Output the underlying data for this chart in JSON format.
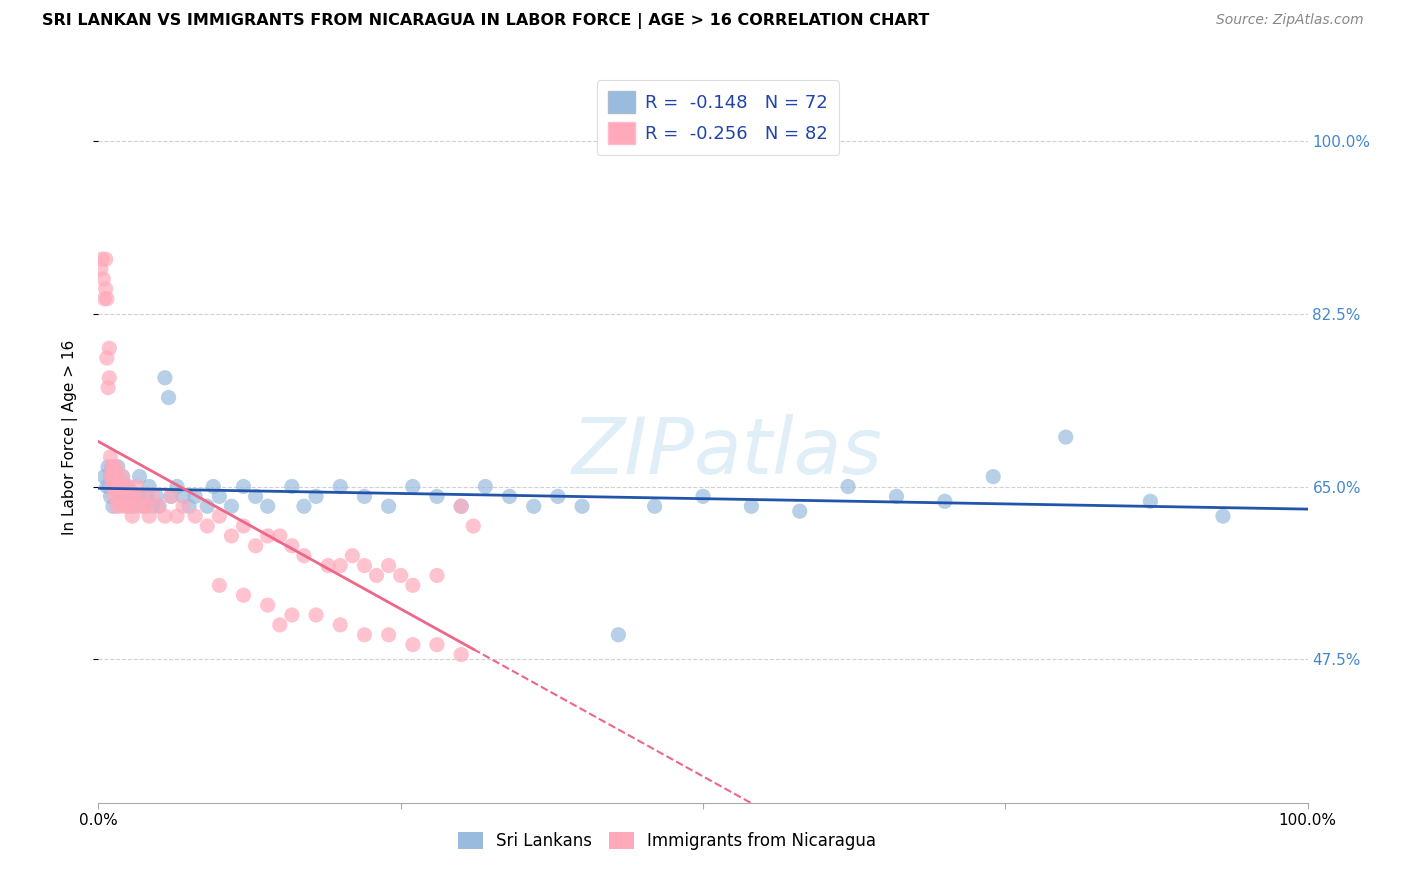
{
  "title": "SRI LANKAN VS IMMIGRANTS FROM NICARAGUA IN LABOR FORCE | AGE > 16 CORRELATION CHART",
  "source": "Source: ZipAtlas.com",
  "ylabel": "In Labor Force | Age > 16",
  "xlim": [
    0.0,
    1.0
  ],
  "ylim": [
    0.33,
    1.07
  ],
  "ytick_vals": [
    0.475,
    0.65,
    0.825,
    1.0
  ],
  "ytick_labels": [
    "47.5%",
    "65.0%",
    "82.5%",
    "100.0%"
  ],
  "xtick_vals": [
    0.0,
    0.25,
    0.5,
    0.75,
    1.0
  ],
  "xtick_labels": [
    "0.0%",
    "",
    "",
    "",
    "100.0%"
  ],
  "sri_lankan_R": -0.148,
  "sri_lankan_N": 72,
  "nicaragua_R": -0.256,
  "nicaragua_N": 82,
  "blue_color": "#99BBDD",
  "pink_color": "#FFAABB",
  "blue_line_color": "#2255AA",
  "pink_line_color": "#EE6688",
  "watermark": "ZIPatlas",
  "background_color": "#FFFFFF",
  "blue_x": [
    0.005,
    0.007,
    0.008,
    0.009,
    0.01,
    0.01,
    0.011,
    0.012,
    0.012,
    0.013,
    0.015,
    0.016,
    0.017,
    0.018,
    0.019,
    0.02,
    0.021,
    0.022,
    0.024,
    0.025,
    0.026,
    0.028,
    0.03,
    0.032,
    0.034,
    0.036,
    0.038,
    0.04,
    0.042,
    0.045,
    0.048,
    0.05,
    0.055,
    0.058,
    0.06,
    0.065,
    0.07,
    0.075,
    0.08,
    0.09,
    0.095,
    0.1,
    0.11,
    0.12,
    0.13,
    0.14,
    0.16,
    0.17,
    0.18,
    0.2,
    0.22,
    0.24,
    0.26,
    0.28,
    0.3,
    0.32,
    0.34,
    0.36,
    0.38,
    0.4,
    0.43,
    0.46,
    0.5,
    0.54,
    0.58,
    0.62,
    0.66,
    0.7,
    0.74,
    0.8,
    0.87,
    0.93
  ],
  "blue_y": [
    0.66,
    0.65,
    0.67,
    0.65,
    0.66,
    0.64,
    0.67,
    0.65,
    0.63,
    0.66,
    0.65,
    0.67,
    0.65,
    0.65,
    0.64,
    0.66,
    0.65,
    0.64,
    0.65,
    0.64,
    0.63,
    0.64,
    0.63,
    0.64,
    0.66,
    0.64,
    0.63,
    0.64,
    0.65,
    0.63,
    0.64,
    0.63,
    0.76,
    0.74,
    0.64,
    0.65,
    0.64,
    0.63,
    0.64,
    0.63,
    0.65,
    0.64,
    0.63,
    0.65,
    0.64,
    0.63,
    0.65,
    0.63,
    0.64,
    0.65,
    0.64,
    0.63,
    0.65,
    0.64,
    0.63,
    0.65,
    0.64,
    0.63,
    0.64,
    0.63,
    0.5,
    0.63,
    0.64,
    0.63,
    0.625,
    0.65,
    0.64,
    0.635,
    0.66,
    0.7,
    0.635,
    0.62
  ],
  "pink_x": [
    0.002,
    0.003,
    0.004,
    0.005,
    0.006,
    0.006,
    0.007,
    0.007,
    0.008,
    0.009,
    0.009,
    0.01,
    0.01,
    0.011,
    0.011,
    0.012,
    0.013,
    0.013,
    0.014,
    0.014,
    0.015,
    0.015,
    0.016,
    0.017,
    0.018,
    0.018,
    0.019,
    0.02,
    0.021,
    0.022,
    0.023,
    0.024,
    0.025,
    0.026,
    0.027,
    0.028,
    0.03,
    0.032,
    0.034,
    0.036,
    0.038,
    0.04,
    0.042,
    0.045,
    0.05,
    0.055,
    0.06,
    0.065,
    0.07,
    0.08,
    0.09,
    0.1,
    0.11,
    0.12,
    0.13,
    0.14,
    0.15,
    0.16,
    0.17,
    0.19,
    0.2,
    0.21,
    0.22,
    0.23,
    0.24,
    0.25,
    0.26,
    0.28,
    0.3,
    0.31,
    0.15,
    0.18,
    0.2,
    0.22,
    0.24,
    0.26,
    0.28,
    0.1,
    0.12,
    0.14,
    0.16,
    0.3
  ],
  "pink_y": [
    0.87,
    0.88,
    0.86,
    0.84,
    0.88,
    0.85,
    0.84,
    0.78,
    0.75,
    0.79,
    0.76,
    0.68,
    0.66,
    0.67,
    0.65,
    0.66,
    0.67,
    0.64,
    0.65,
    0.67,
    0.63,
    0.66,
    0.65,
    0.64,
    0.65,
    0.63,
    0.65,
    0.66,
    0.65,
    0.63,
    0.64,
    0.63,
    0.65,
    0.64,
    0.63,
    0.62,
    0.64,
    0.65,
    0.63,
    0.64,
    0.63,
    0.63,
    0.62,
    0.64,
    0.63,
    0.62,
    0.64,
    0.62,
    0.63,
    0.62,
    0.61,
    0.62,
    0.6,
    0.61,
    0.59,
    0.6,
    0.6,
    0.59,
    0.58,
    0.57,
    0.57,
    0.58,
    0.57,
    0.56,
    0.57,
    0.56,
    0.55,
    0.56,
    0.63,
    0.61,
    0.51,
    0.52,
    0.51,
    0.5,
    0.5,
    0.49,
    0.49,
    0.55,
    0.54,
    0.53,
    0.52,
    0.48
  ]
}
